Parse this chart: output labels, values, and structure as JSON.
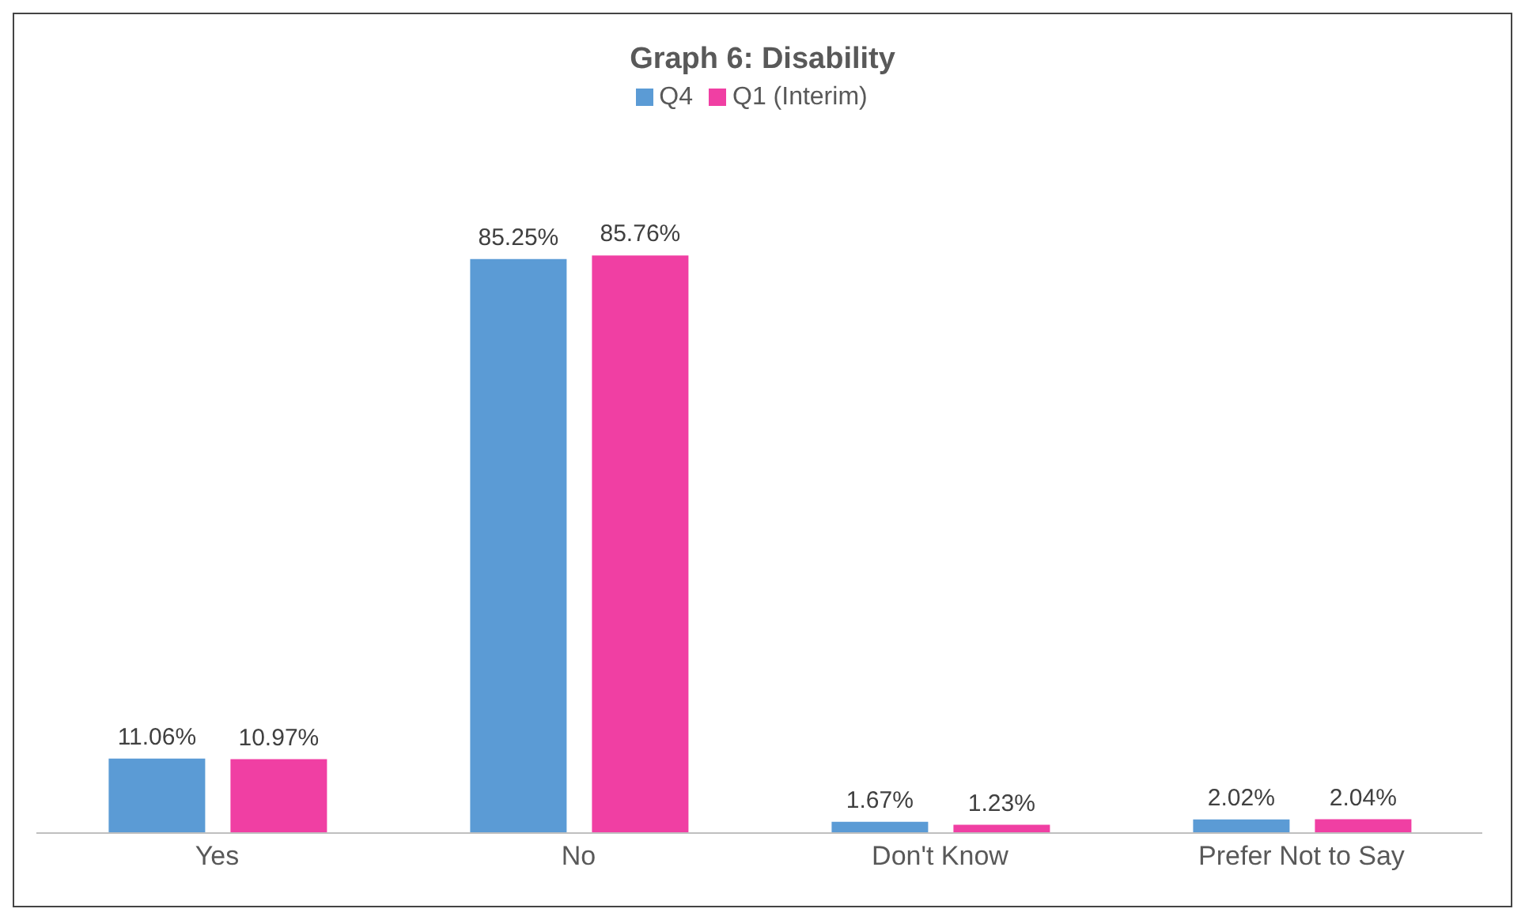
{
  "chart_data": {
    "type": "bar",
    "title": "Graph 6: Disability",
    "categories": [
      "Yes",
      "No",
      "Don't Know",
      "Prefer Not to Say"
    ],
    "series": [
      {
        "name": "Q4",
        "color": "#5b9bd5",
        "values": [
          11.06,
          85.25,
          1.67,
          2.02
        ],
        "value_labels": [
          "11.06%",
          "85.25%",
          "1.67%",
          "2.02%"
        ]
      },
      {
        "name": "Q1 (Interim)",
        "color": "#f03fa3",
        "values": [
          10.97,
          85.76,
          1.23,
          2.04
        ],
        "value_labels": [
          "10.97%",
          "85.76%",
          "1.23%",
          "2.04%"
        ]
      }
    ],
    "legend": "top",
    "grid": false
  }
}
